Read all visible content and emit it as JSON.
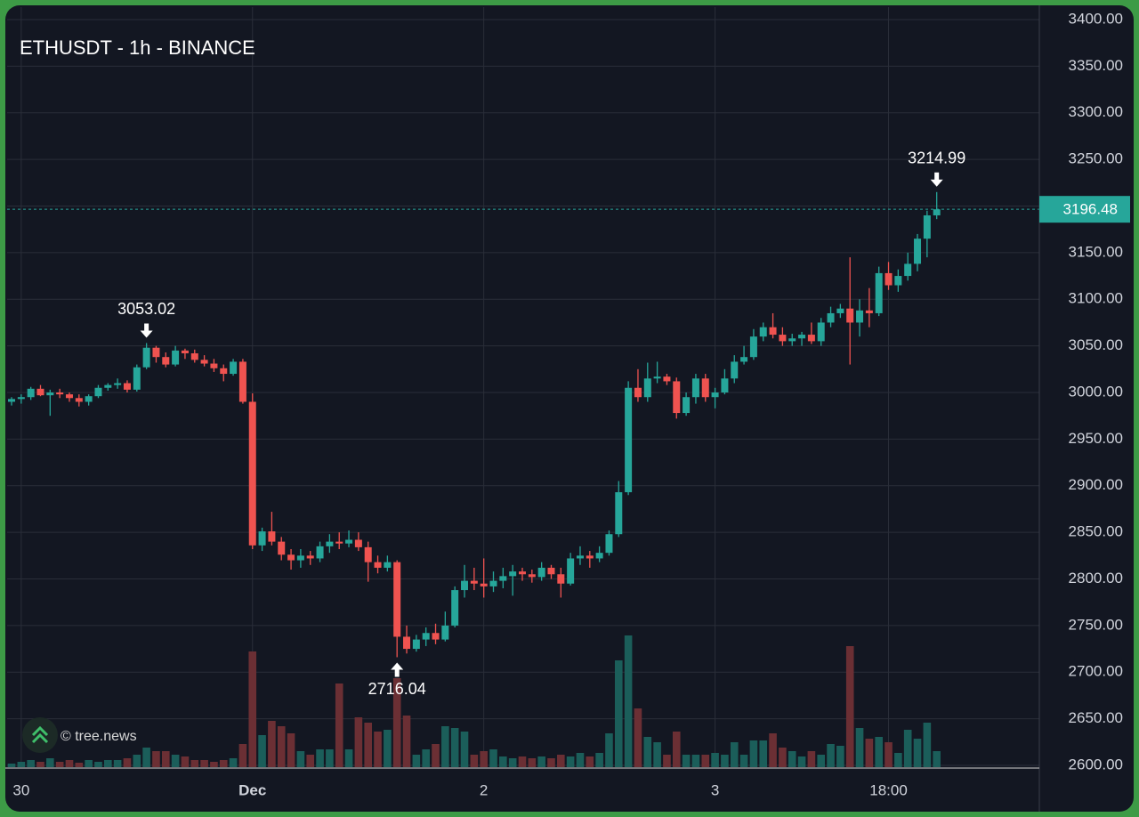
{
  "chart_data": {
    "type": "candlestick",
    "title": "ETHUSDT - 1h - BINANCE",
    "watermark": "© tree.news",
    "categories": [
      null,
      "30",
      null,
      null,
      null,
      null,
      null,
      null,
      null,
      null,
      null,
      null,
      null,
      null,
      null,
      null,
      null,
      null,
      null,
      null,
      null,
      null,
      null,
      null,
      null,
      "Dec",
      null,
      null,
      null,
      null,
      null,
      null,
      null,
      null,
      null,
      null,
      null,
      null,
      null,
      null,
      null,
      null,
      null,
      null,
      null,
      null,
      null,
      null,
      null,
      "2",
      null,
      null,
      null,
      null,
      null,
      null,
      null,
      null,
      null,
      null,
      null,
      null,
      null,
      null,
      null,
      null,
      null,
      null,
      null,
      null,
      null,
      null,
      null,
      "3",
      null,
      null,
      null,
      null,
      null,
      null,
      null,
      null,
      null,
      null,
      null,
      null,
      null,
      null,
      null,
      null,
      null,
      "18:00",
      null,
      null,
      null,
      null,
      null
    ],
    "open": [
      2990,
      2993,
      2995,
      3004,
      2997,
      3000,
      2998,
      2994,
      2990,
      2996,
      3005,
      3008,
      3010,
      3003,
      3027,
      3048,
      3038,
      3030,
      3045,
      3042,
      3035,
      3031,
      3026,
      3020,
      3033,
      2990,
      2836,
      2851,
      2840,
      2826,
      2820,
      2825,
      2822,
      2835,
      2840,
      2838,
      2842,
      2834,
      2818,
      2812,
      2818,
      2738,
      2725,
      2735,
      2742,
      2735,
      2750,
      2788,
      2798,
      2795,
      2792,
      2798,
      2803,
      2808,
      2805,
      2802,
      2812,
      2805,
      2795,
      2822,
      2825,
      2822,
      2828,
      2848,
      2893,
      3005,
      2995,
      3015,
      3017,
      3012,
      2978,
      2995,
      3015,
      2995,
      3000,
      3015,
      3033,
      3038,
      3060,
      3070,
      3062,
      3055,
      3058,
      3062,
      3055,
      3075,
      3085,
      3090,
      3075,
      3088,
      3085,
      3128,
      3115,
      3125,
      3138,
      3165,
      3190
    ],
    "high": [
      2995,
      2998,
      3006,
      3008,
      3003,
      3004,
      3000,
      2998,
      2998,
      3008,
      3010,
      3015,
      3013,
      3030,
      3053.02,
      3050,
      3043,
      3050,
      3047,
      3046,
      3040,
      3036,
      3030,
      3036,
      3036,
      2999,
      2855,
      2872,
      2845,
      2832,
      2832,
      2830,
      2840,
      2848,
      2850,
      2852,
      2850,
      2840,
      2825,
      2825,
      2820,
      2750,
      2740,
      2748,
      2752,
      2765,
      2792,
      2815,
      2812,
      2822,
      2808,
      2812,
      2815,
      2812,
      2810,
      2818,
      2815,
      2812,
      2828,
      2835,
      2830,
      2835,
      2852,
      2905,
      3012,
      3025,
      3032,
      3033,
      3020,
      3016,
      3000,
      3020,
      3020,
      3005,
      3025,
      3040,
      3050,
      3068,
      3075,
      3085,
      3070,
      3063,
      3065,
      3075,
      3080,
      3092,
      3095,
      3145,
      3100,
      3112,
      3135,
      3140,
      3132,
      3150,
      3170,
      3195,
      3214.99
    ],
    "low": [
      2986,
      2988,
      2992,
      2996,
      2975,
      2994,
      2990,
      2985,
      2986,
      2994,
      3002,
      3004,
      3000,
      3001,
      3025,
      3032,
      3027,
      3028,
      3036,
      3032,
      3028,
      3022,
      3012,
      3018,
      2988,
      2832,
      2830,
      2836,
      2820,
      2810,
      2812,
      2815,
      2818,
      2828,
      2832,
      2834,
      2830,
      2797,
      2806,
      2808,
      2716.04,
      2720,
      2722,
      2728,
      2730,
      2733,
      2748,
      2780,
      2788,
      2780,
      2786,
      2790,
      2782,
      2798,
      2796,
      2798,
      2800,
      2780,
      2793,
      2815,
      2812,
      2818,
      2825,
      2845,
      2890,
      2990,
      2990,
      3010,
      3008,
      2972,
      2975,
      2988,
      2990,
      2983,
      2998,
      3010,
      3030,
      3035,
      3055,
      3058,
      3050,
      3050,
      3050,
      3052,
      3050,
      3070,
      3080,
      3030,
      3060,
      3070,
      3082,
      3110,
      3108,
      3120,
      3130,
      3145,
      3186
    ],
    "close": [
      2993,
      2995,
      3004,
      2997,
      3000,
      2998,
      2994,
      2990,
      2996,
      3005,
      3008,
      3010,
      3003,
      3027,
      3048,
      3038,
      3030,
      3045,
      3042,
      3035,
      3031,
      3026,
      3020,
      3033,
      2990,
      2836,
      2851,
      2840,
      2826,
      2820,
      2825,
      2822,
      2835,
      2840,
      2838,
      2842,
      2834,
      2818,
      2812,
      2818,
      2738,
      2725,
      2735,
      2742,
      2735,
      2750,
      2788,
      2798,
      2795,
      2792,
      2798,
      2803,
      2808,
      2805,
      2802,
      2812,
      2805,
      2795,
      2822,
      2825,
      2822,
      2828,
      2848,
      2893,
      3005,
      2995,
      3015,
      3017,
      3012,
      2978,
      2995,
      3015,
      2995,
      3000,
      3015,
      3033,
      3038,
      3060,
      3070,
      3062,
      3055,
      3058,
      3062,
      3055,
      3075,
      3085,
      3090,
      3075,
      3088,
      3085,
      3128,
      3115,
      3125,
      3138,
      3165,
      3190,
      3196.48
    ],
    "volume": [
      4,
      6,
      8,
      6,
      10,
      6,
      8,
      5,
      8,
      6,
      8,
      8,
      10,
      14,
      22,
      18,
      18,
      14,
      12,
      8,
      8,
      6,
      8,
      10,
      26,
      130,
      36,
      52,
      46,
      38,
      18,
      14,
      20,
      20,
      94,
      20,
      56,
      50,
      40,
      42,
      100,
      58,
      14,
      20,
      26,
      46,
      44,
      40,
      14,
      18,
      20,
      12,
      10,
      12,
      10,
      12,
      10,
      14,
      12,
      16,
      12,
      16,
      38,
      120,
      148,
      66,
      34,
      28,
      14,
      40,
      14,
      14,
      14,
      16,
      14,
      28,
      14,
      30,
      30,
      38,
      22,
      18,
      12,
      18,
      14,
      26,
      24,
      136,
      44,
      32,
      34,
      28,
      16,
      42,
      32,
      50,
      18
    ],
    "up_color": "#26a69a",
    "down_color": "#ef5350",
    "volume_up_color": "#1b5e5a",
    "volume_down_color": "#6b2f34",
    "ylim": [
      2600,
      3400
    ],
    "yticks": [
      {
        "value": 3400,
        "label": "3400.00"
      },
      {
        "value": 3350,
        "label": "3350.00"
      },
      {
        "value": 3300,
        "label": "3300.00"
      },
      {
        "value": 3250,
        "label": "3250.00"
      },
      {
        "value": 3200,
        "label": "3200.00"
      },
      {
        "value": 3150,
        "label": "3150.00"
      },
      {
        "value": 3100,
        "label": "3100.00"
      },
      {
        "value": 3050,
        "label": "3050.00"
      },
      {
        "value": 3000,
        "label": "3000.00"
      },
      {
        "value": 2950,
        "label": "2950.00"
      },
      {
        "value": 2900,
        "label": "2900.00"
      },
      {
        "value": 2850,
        "label": "2850.00"
      },
      {
        "value": 2800,
        "label": "2800.00"
      },
      {
        "value": 2750,
        "label": "2750.00"
      },
      {
        "value": 2700,
        "label": "2700.00"
      },
      {
        "value": 2650,
        "label": "2650.00"
      },
      {
        "value": 2600,
        "label": "2600.00"
      }
    ],
    "grid": true
  }
}
